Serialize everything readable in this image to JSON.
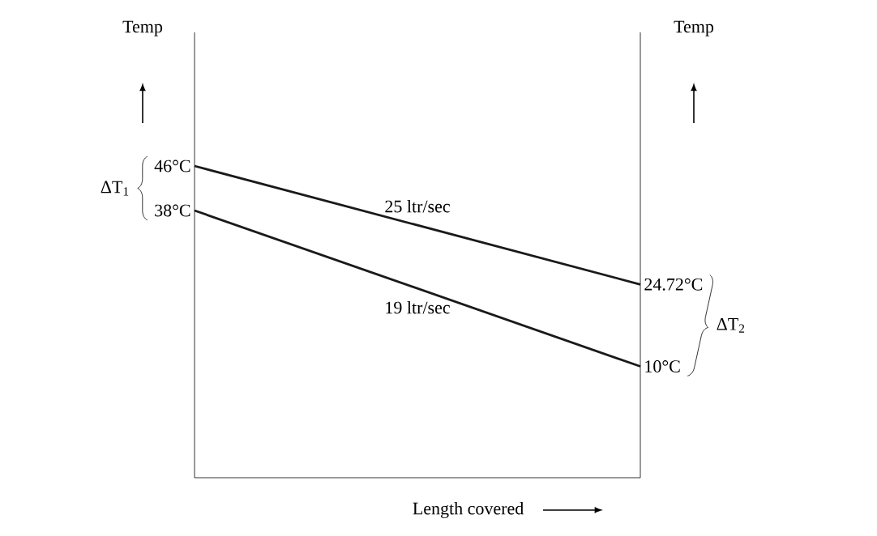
{
  "chart_data": {
    "type": "line",
    "xlabel": "Length covered",
    "ylabel": "Temp",
    "y2label": "Temp",
    "categories": [
      null,
      null
    ],
    "series": [
      {
        "color": "#1a1a1a",
        "values": [
          46,
          24.72
        ],
        "value_labels": [
          "46°C",
          "24.72°C"
        ]
      },
      {
        "color": "#1a1a1a",
        "values": [
          38,
          10
        ],
        "value_labels": [
          "38°C",
          "10°C"
        ]
      }
    ],
    "ylim": [
      -10,
      70
    ],
    "grid": false,
    "marker": "none",
    "line_style": "solid",
    "annotations": [
      "25 ltr/sec",
      "19 ltr/sec",
      "ΔT$_{1}$",
      "ΔT$_{2}$"
    ]
  }
}
